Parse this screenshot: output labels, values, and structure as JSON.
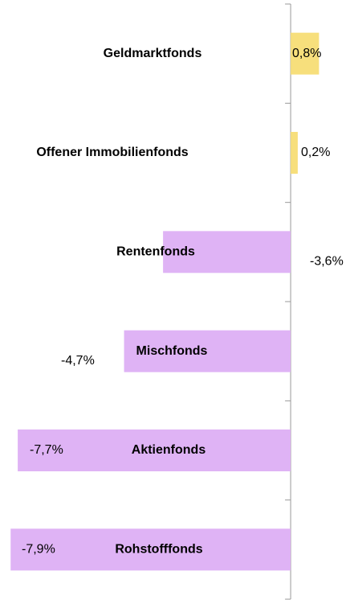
{
  "chart_data": {
    "type": "hbar",
    "categories": [
      "Geldmarktfonds",
      "Offener Immobilienfonds",
      "Rentenfonds",
      "Mischfonds",
      "Aktienfonds",
      "Rohstofffonds"
    ],
    "values": [
      0.8,
      0.2,
      -3.6,
      -4.7,
      -7.7,
      -7.9
    ],
    "value_labels": [
      "0,8%",
      "0,2%",
      "-3,6%",
      "-4,7%",
      "-7,7%",
      "-7,9%"
    ],
    "color_positive": "#f7df7c",
    "color_negative": "#dfb3f5",
    "xlim": [
      -8.2,
      1.9
    ]
  }
}
